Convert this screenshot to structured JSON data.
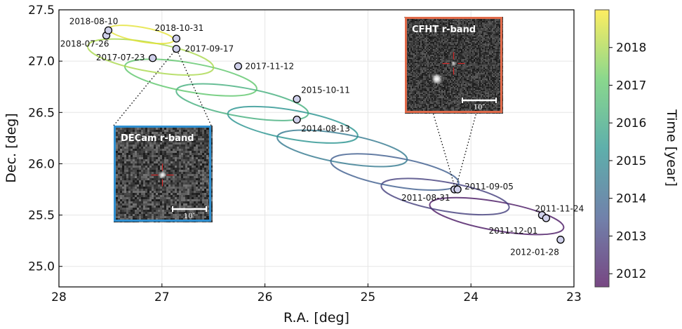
{
  "chart_data": {
    "type": "scatter",
    "title": "",
    "xlabel": "R.A. [deg]",
    "ylabel": "Dec. [deg]",
    "xlim": [
      28,
      23
    ],
    "ylim": [
      24.8,
      27.5
    ],
    "x_inverted": true,
    "xticks": [
      28,
      27,
      26,
      25,
      24,
      23
    ],
    "yticks": [
      25.0,
      25.5,
      26.0,
      26.5,
      27.0,
      27.5
    ],
    "grid": true,
    "colorbar": {
      "label": "Time [year]",
      "ticks": [
        2012,
        2013,
        2014,
        2015,
        2016,
        2017,
        2018
      ],
      "range": [
        2011.65,
        2019.0
      ],
      "colormap": "viridis"
    },
    "points": [
      {
        "label": "2011-08-31",
        "ra": 24.16,
        "dec": 25.75,
        "time": 2011.66
      },
      {
        "label": "2011-09-05",
        "ra": 24.13,
        "dec": 25.75,
        "time": 2011.68
      },
      {
        "label": "2011-11-24",
        "ra": 23.31,
        "dec": 25.5,
        "time": 2011.9
      },
      {
        "label": "2011-12-01",
        "ra": 23.27,
        "dec": 25.47,
        "time": 2011.92
      },
      {
        "label": "2012-01-28",
        "ra": 23.13,
        "dec": 25.26,
        "time": 2012.08
      },
      {
        "label": "2014-08-13",
        "ra": 25.69,
        "dec": 26.43,
        "time": 2014.61
      },
      {
        "label": "2015-10-11",
        "ra": 25.69,
        "dec": 26.63,
        "time": 2015.78
      },
      {
        "label": "2017-07-23",
        "ra": 27.09,
        "dec": 27.03,
        "time": 2017.56
      },
      {
        "label": "2017-09-17",
        "ra": 26.86,
        "dec": 27.12,
        "time": 2017.71
      },
      {
        "label": "2017-11-12",
        "ra": 26.26,
        "dec": 26.95,
        "time": 2017.86
      },
      {
        "label": "2018-07-26",
        "ra": 27.54,
        "dec": 27.25,
        "time": 2018.57
      },
      {
        "label": "2018-08-10",
        "ra": 27.52,
        "dec": 27.3,
        "time": 2018.61
      },
      {
        "label": "2018-10-31",
        "ra": 26.86,
        "dec": 27.22,
        "time": 2018.83
      }
    ],
    "ellipses": [
      {
        "ra": 23.75,
        "dec": 25.49,
        "a": 0.66,
        "b": 0.14,
        "angle": -10,
        "time": 2012.0
      },
      {
        "ra": 24.25,
        "dec": 25.68,
        "a": 0.63,
        "b": 0.14,
        "angle": -10,
        "time": 2012.9
      },
      {
        "ra": 24.74,
        "dec": 25.92,
        "a": 0.63,
        "b": 0.14,
        "angle": -10,
        "time": 2013.7
      },
      {
        "ra": 25.25,
        "dec": 26.15,
        "a": 0.64,
        "b": 0.14,
        "angle": -10,
        "time": 2014.5
      },
      {
        "ra": 25.73,
        "dec": 26.38,
        "a": 0.64,
        "b": 0.14,
        "angle": -10,
        "time": 2015.3
      },
      {
        "ra": 26.22,
        "dec": 26.6,
        "a": 0.65,
        "b": 0.14,
        "angle": -10,
        "time": 2016.2
      },
      {
        "ra": 26.72,
        "dec": 26.84,
        "a": 0.65,
        "b": 0.14,
        "angle": -10,
        "time": 2017.0
      },
      {
        "ra": 27.11,
        "dec": 27.04,
        "a": 0.62,
        "b": 0.14,
        "angle": -10,
        "time": 2018.0
      },
      {
        "ra": 27.2,
        "dec": 27.26,
        "a": 0.32,
        "b": 0.07,
        "angle": -10,
        "time": 2018.7
      }
    ],
    "insets": [
      {
        "title": "DECam r-band",
        "scale": "10″",
        "border": "#2f8fd0",
        "anchor_ra": 26.86,
        "anchor_dec": 27.12
      },
      {
        "title": "CFHT r-band",
        "scale": "10″",
        "border": "#e06a4a",
        "anchor_ra": 24.15,
        "anchor_dec": 25.75
      }
    ]
  }
}
